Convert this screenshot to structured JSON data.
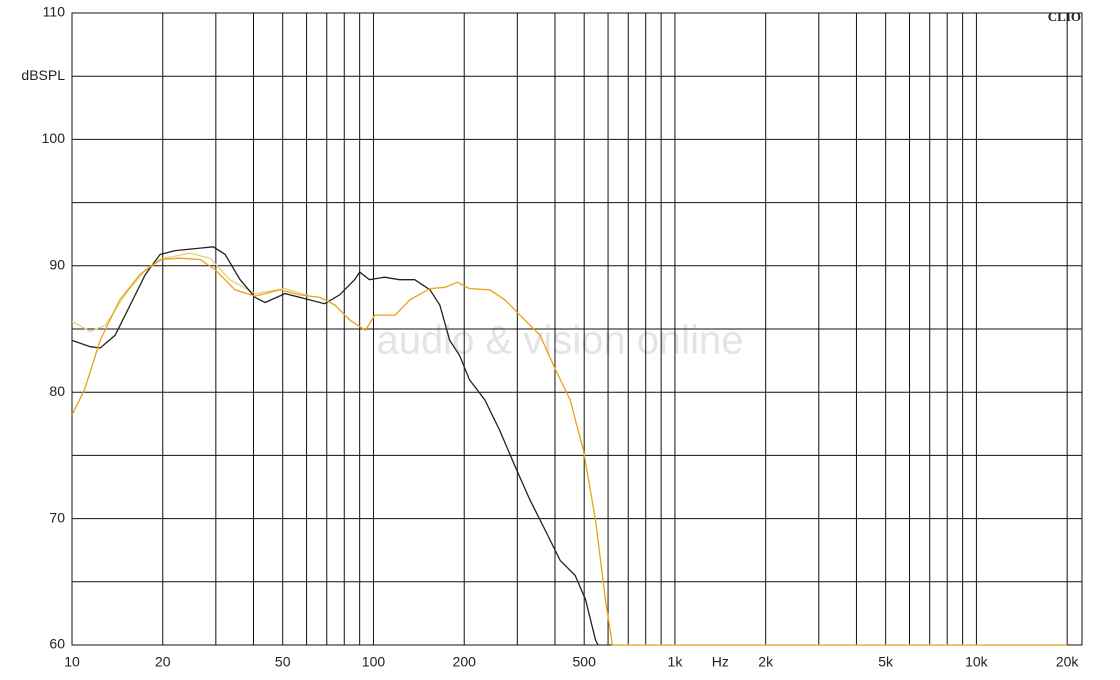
{
  "chart_data": {
    "type": "line",
    "brand": "CLIO",
    "watermark": "audio & vision online",
    "y_label": "dBSPL",
    "x_label": "Hz",
    "x_scale": "log",
    "xlim": [
      10,
      22400
    ],
    "ylim": [
      60,
      110
    ],
    "yticks": [
      60,
      70,
      80,
      90,
      100,
      110
    ],
    "minor_yticks": [
      65,
      75,
      85,
      95,
      105
    ],
    "xticks": [
      10,
      20,
      50,
      100,
      200,
      500,
      {
        "value": 1000,
        "label": "1k"
      },
      {
        "value": 2000,
        "label": "2k"
      },
      {
        "value": 5000,
        "label": "5k"
      },
      {
        "value": 10000,
        "label": "10k"
      },
      {
        "value": 20000,
        "label": "20k"
      }
    ],
    "minor_xticks": [
      30,
      40,
      60,
      70,
      80,
      90,
      300,
      400,
      600,
      700,
      800,
      900,
      3000,
      4000,
      6000,
      7000,
      8000,
      9000
    ],
    "series": [
      {
        "color": "#e8cf85",
        "x": [
          10,
          11.5,
          12.9,
          15,
          17.5,
          20.3,
          24.6,
          28.7,
          33.4,
          40.5,
          50.9,
          61.4
        ],
        "values": [
          85.6,
          84.8,
          85.3,
          87.7,
          89.7,
          90.6,
          91.0,
          90.6,
          88.9,
          87.8,
          88.2,
          87.6
        ]
      },
      {
        "color": "#222222",
        "x": [
          10,
          11.5,
          12.4,
          13.9,
          15.6,
          17.5,
          19.6,
          22,
          26.6,
          29.4,
          32.2,
          36.1,
          40.5,
          43.7,
          50.9,
          61.4,
          68.9,
          77.2,
          86.6,
          90,
          97,
          108.8,
          122,
          137,
          154,
          166,
          179,
          193,
          208,
          234,
          262,
          294,
          330,
          371,
          416,
          467,
          505,
          545,
          556
        ],
        "values": [
          84.1,
          83.6,
          83.5,
          84.5,
          86.9,
          89.3,
          90.9,
          91.2,
          91.4,
          91.5,
          90.9,
          88.9,
          87.5,
          87.1,
          87.8,
          87.3,
          87.0,
          87.7,
          88.9,
          89.5,
          88.9,
          89.1,
          88.9,
          88.9,
          88.1,
          86.9,
          84.1,
          82.9,
          81.0,
          79.4,
          77.0,
          74.2,
          71.5,
          69.1,
          66.7,
          65.5,
          63.6,
          60.4,
          60
        ]
      },
      {
        "color": "#e8a317",
        "x": [
          10,
          11,
          12.4,
          14.4,
          16.8,
          19.6,
          22.8,
          26.6,
          29.8,
          34.7,
          40.5,
          49,
          57,
          66.5,
          74.5,
          83.6,
          94,
          101,
          118,
          132,
          154,
          173,
          190,
          208,
          243,
          273,
          306,
          357,
          401,
          449,
          497,
          545,
          588,
          620,
          1000,
          5000,
          20000
        ],
        "values": [
          78.2,
          80.2,
          84.1,
          87.3,
          89.3,
          90.5,
          90.6,
          90.5,
          89.7,
          88.1,
          87.6,
          88.1,
          87.7,
          87.5,
          86.9,
          85.7,
          84.9,
          86.1,
          86.1,
          87.3,
          88.2,
          88.3,
          88.7,
          88.2,
          88.1,
          87.3,
          86.1,
          84.5,
          81.8,
          79.4,
          75.4,
          69.9,
          63.6,
          60,
          60,
          60,
          60
        ]
      }
    ]
  }
}
